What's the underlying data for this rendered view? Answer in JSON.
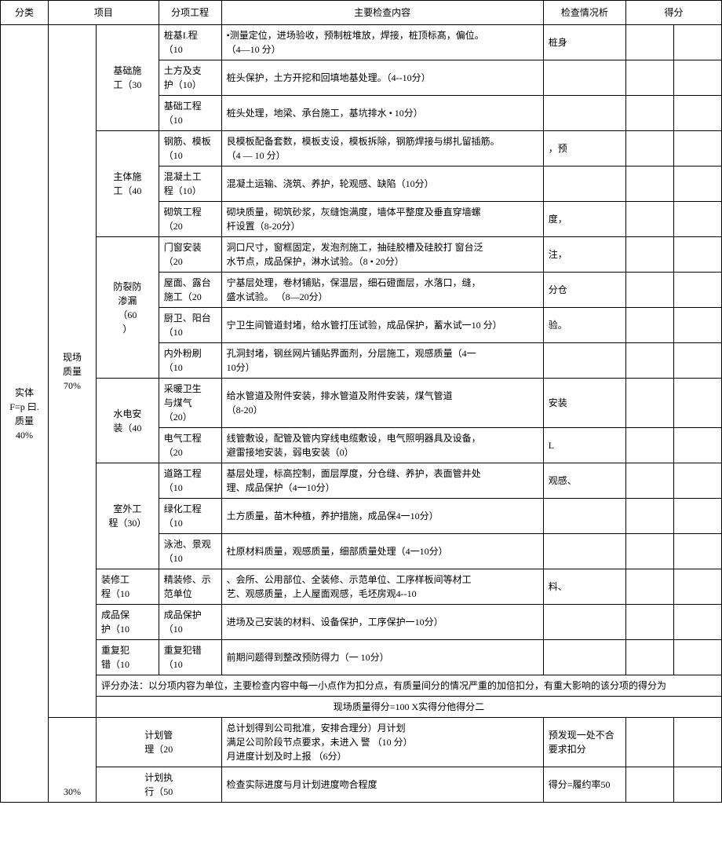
{
  "header": {
    "c1": "分类",
    "c2": "项目",
    "c3": "分项工程",
    "c4": "主要检查内容",
    "c5": "检查情况析",
    "c6": "得分"
  },
  "cat": {
    "label": "实体\nF=p 曰.\n质量\n40%"
  },
  "proj": {
    "site_quality": "现场\n质量\n70%",
    "pct30": "30%"
  },
  "groups": {
    "foundation": "基础施\n工（30",
    "main": "主体施\n工（40",
    "crack": "防裂防\n渗漏\n（60\n）",
    "water_elec": "水电安\n装（40",
    "outdoor": "室外工\n程（30）",
    "decoration": "装修工\n程（10",
    "product_protect": "成品保\n护（10",
    "repeat_err": "重复犯\n错（10",
    "plan_mgmt": "计划管\n理（20",
    "plan_exec": "计划执\n行（50"
  },
  "items": {
    "pile": "桩基I.程\n（10",
    "earth": "土方及支\n护（10）",
    "foundation_eng": "基础工程\n（10",
    "rebar": "钢筋、模板\n（10",
    "concrete": "混凝土工\n程（10）",
    "masonry": "砌筑工程\n（20",
    "window": "门窗安装\n（20",
    "roof": "屋面、露台\n施工（20",
    "kitchen": "厨卫、阳台\n（10",
    "plaster": "内外粉刷\n（10",
    "heating": "采暖卫生\n与煤气\n（20）",
    "electrical": "电气工程\n（20",
    "road": "道路工程\n（10",
    "greening": "绿化工程\n（10",
    "pool": "泳池、景观\n（10",
    "fine_deco": "精装修、示\n范单位",
    "prod_protect": "成品保护\n（10",
    "repeat": "重复犯错\n（10"
  },
  "content": {
    "pile": "•测量定位，进场验收，预制桩堆放，焊接，桩顶标髙，偏位。\n（4—10 分）",
    "earth": "桩头保护，土方开挖和回填地基处理。（4--10分）",
    "foundation_eng": "桩头处理，地梁、承台施工，基坑排水 • 10分）",
    "rebar": "艮模板配备套数，模板支设，模板拆除，钢筋焊接与绑扎留插筋。\n（4 — 10 分）",
    "concrete": "混凝土运输、浇筑、养护，轮观感、缺陷（10分）",
    "masonry": " 砌块质量，砌筑砂浆，灰缝饱满度，墙体平整度及垂直穿墙螺\n杆设置（8-20分）",
    "window": " 洞口尺寸，窗框固定，发泡剂施工，抽硅胶槽及硅胶打 窗台泛\n水节点，成品保护，淋水试验。（8 • 20分）",
    "roof": "宁基层处理，卷材铺贴，保温层，细石磴面层，水落口，缝，\n盛水试验。 （8—20分）",
    "kitchen": "宁卫生间管道封堵，给水管打压试验，成品保护，蓄水试一10 分）",
    "plaster": " 孔洞封堵，钢丝网片铺贴界面剂，分层施工，观感质量（4一\n10分）",
    "heating": "给水管道及附件安装，排水管道及附件安装，煤气管道\n （8-20）",
    "electrical": " 线管敷设，配管及管内穿线电缆敷设，电气照明器具及设备，\n避雷接地安装，弱电安装（0）",
    "road": " 基层处理，标高控制，面层厚度，分仓缝、养护，表面管井处\n理、成品保护（4一10分）",
    "greening": "土方质量，苗木种植，养护措施，成品保4一10分）",
    "pool": "社原材料质量，观感质量，细部质量处理（4一10分）",
    "fine_deco": "、会所、公用部位、全装修、示范单位、工序样板间等材工\n艺、观感质量，上人屋面观感，毛坯房观4--10",
    "prod_protect": "进场及己安装的材料、设备保护，工序保护一10分）",
    "repeat": "前期问题得到整改预防得力（一 10分）",
    "eval_method": "评分办法：以分项内容为单位，主要检查内容中每一小点作为扣分点，有质量间分的情况严重的加倍扣分，有重大影响的该分项的得分为",
    "formula": "现场质量得分=100 X实得分他得分二",
    "plan_mgmt_l": "总计划得到公司批准，安排合理分）月计划\n满足公司阶段节点要求，未进入 警 （10 分）\n月进度计划及时上报 （6分）",
    "plan_mgmt_r": "预发现一处不合要求扣分",
    "plan_exec_l": "检查实际进度与月计划进度吻合程度",
    "plan_exec_r": "得分=履约率50"
  },
  "status": {
    "pile": "桩身",
    "rebar": "，预",
    "masonry": "度，",
    "window": "注，",
    "roof": "分仓",
    "kitchen": "验。",
    "heating": "安装",
    "electrical": "L",
    "road": "观感、",
    "fine_deco": "料、"
  }
}
